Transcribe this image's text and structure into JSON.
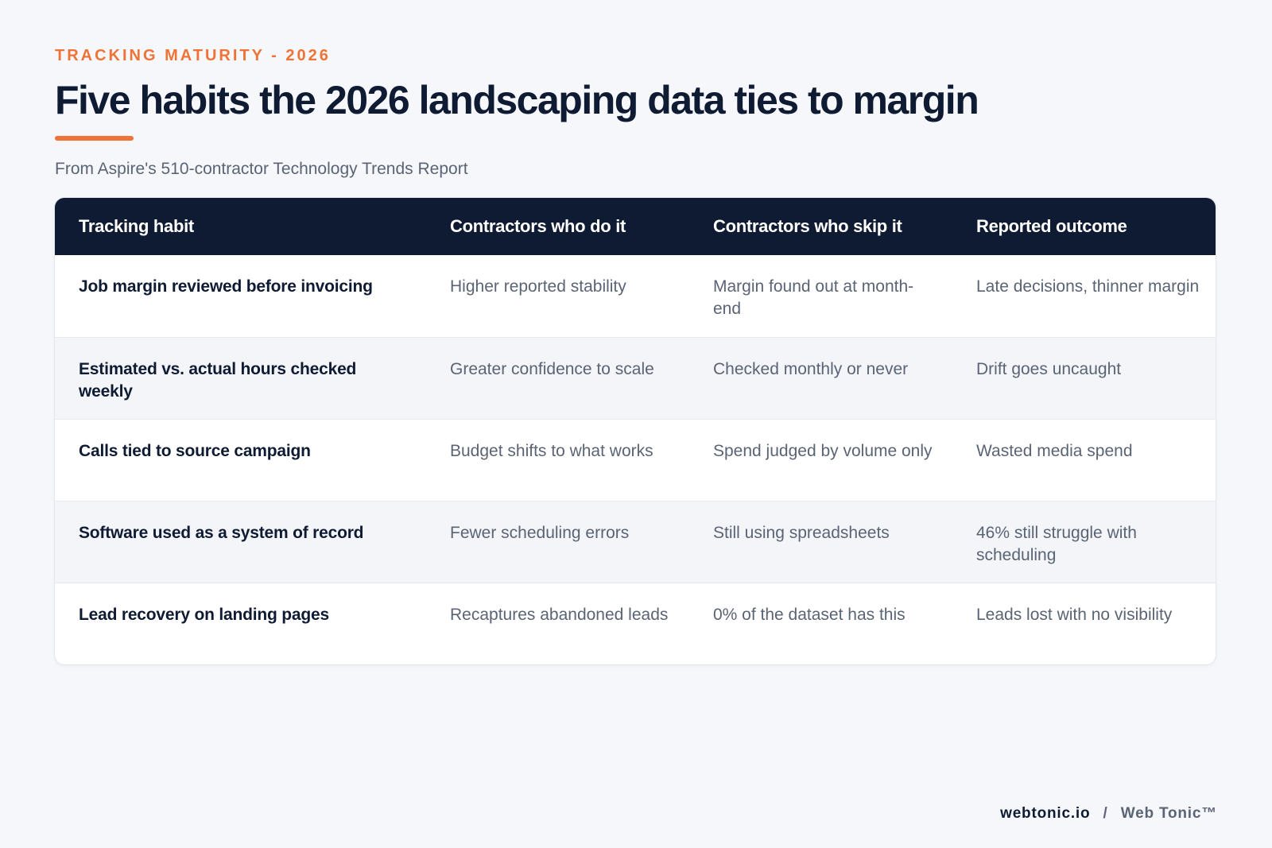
{
  "header": {
    "eyebrow": "TRACKING MATURITY - 2026",
    "title": "Five habits the 2026 landscaping data ties to margin",
    "subtitle": "From Aspire's 510-contractor Technology Trends Report"
  },
  "table": {
    "columns": [
      "Tracking habit",
      "Contractors who do it",
      "Contractors who skip it",
      "Reported outcome"
    ],
    "rows": [
      [
        "Job margin reviewed before invoicing",
        "Higher reported stability",
        "Margin found out at month-end",
        "Late decisions, thinner margin"
      ],
      [
        "Estimated vs. actual hours checked weekly",
        "Greater confidence to scale",
        "Checked monthly or never",
        "Drift goes uncaught"
      ],
      [
        "Calls tied to source campaign",
        "Budget shifts to what works",
        "Spend judged by volume only",
        "Wasted media spend"
      ],
      [
        "Software used as a system of record",
        "Fewer scheduling errors",
        "Still using spreadsheets",
        "46% still struggle with scheduling"
      ],
      [
        "Lead recovery on landing pages",
        "Recaptures abandoned leads",
        "0% of the dataset has this",
        "Leads lost with no visibility"
      ]
    ]
  },
  "footer": {
    "domain": "webtonic.io",
    "separator": "/",
    "brand": "Web Tonic™"
  },
  "colors": {
    "accent": "#ef7337",
    "navy": "#0f1b33",
    "muted_text": "#5a6474",
    "background": "#f5f7fa"
  }
}
